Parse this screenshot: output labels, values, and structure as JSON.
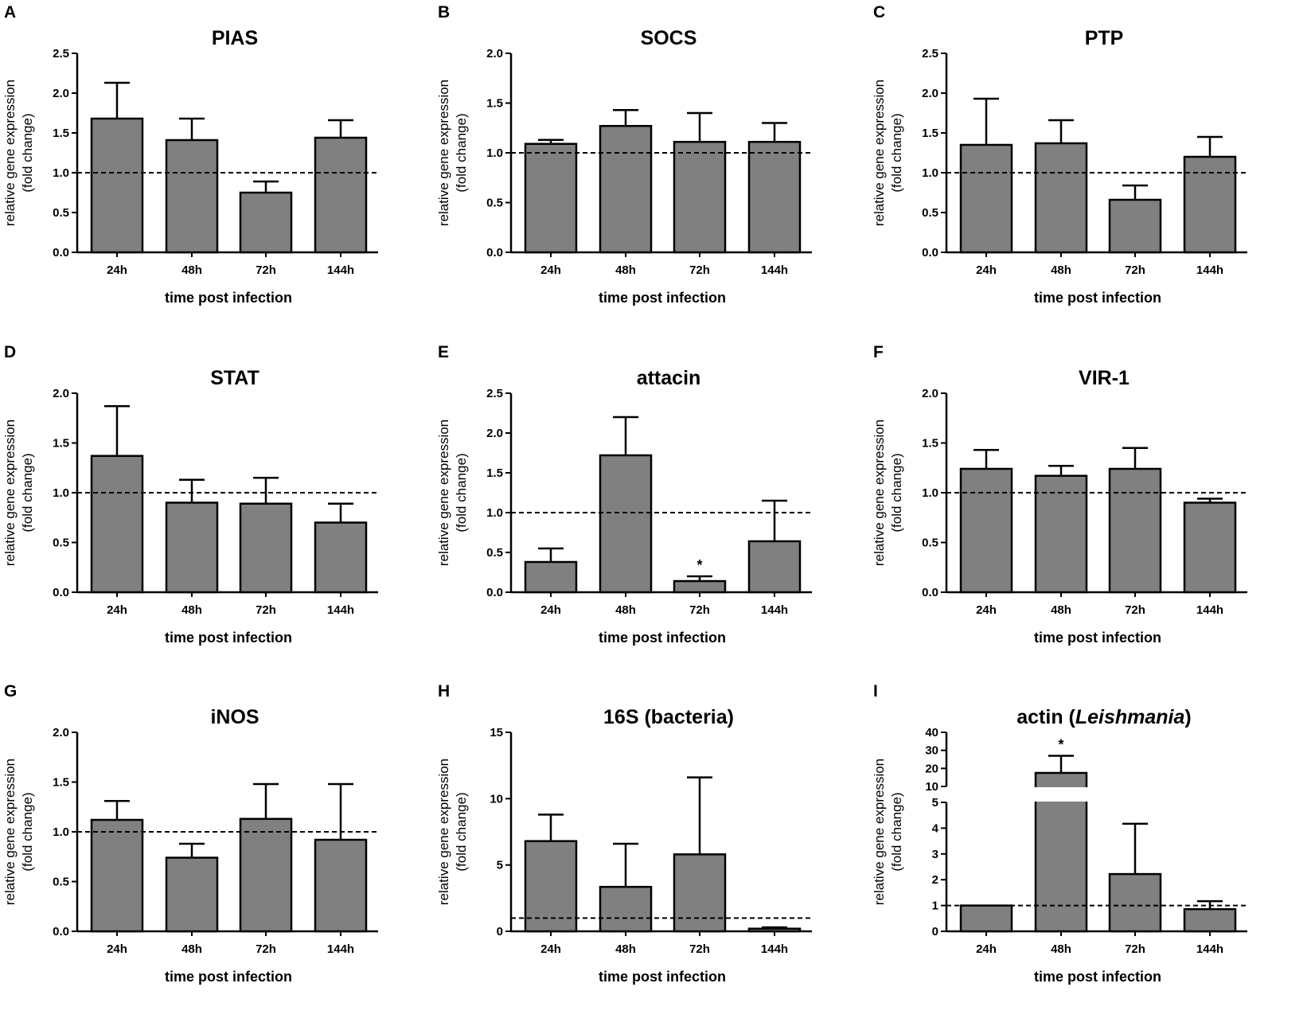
{
  "chart_data": [
    {
      "type": "bar",
      "panel": "A",
      "title": "PIAS",
      "xlabel": "time post infection",
      "ylabel": [
        "relative gene expression",
        "(fold change)"
      ],
      "categories": [
        "24h",
        "48h",
        "72h",
        "144h"
      ],
      "values": [
        1.68,
        1.41,
        0.75,
        1.44
      ],
      "error_upper": [
        2.13,
        1.68,
        0.89,
        1.66
      ],
      "ylim": [
        0,
        2.5
      ],
      "yticks": [
        "0.0",
        "0.5",
        "1.0",
        "1.5",
        "2.0",
        "2.5"
      ],
      "reference_line": 1.0,
      "significance": [
        "",
        "",
        "",
        ""
      ]
    },
    {
      "type": "bar",
      "panel": "B",
      "title": "SOCS",
      "xlabel": "time post infection",
      "ylabel": [
        "relative gene expression",
        "(fold change)"
      ],
      "categories": [
        "24h",
        "48h",
        "72h",
        "144h"
      ],
      "values": [
        1.09,
        1.27,
        1.11,
        1.11
      ],
      "error_upper": [
        1.13,
        1.43,
        1.4,
        1.3
      ],
      "ylim": [
        0,
        2.0
      ],
      "yticks": [
        "0.0",
        "0.5",
        "1.0",
        "1.5",
        "2.0"
      ],
      "reference_line": 1.0,
      "significance": [
        "",
        "",
        "",
        ""
      ]
    },
    {
      "type": "bar",
      "panel": "C",
      "title": "PTP",
      "xlabel": "time post infection",
      "ylabel": [
        "relative gene expression",
        "(fold change)"
      ],
      "categories": [
        "24h",
        "48h",
        "72h",
        "144h"
      ],
      "values": [
        1.35,
        1.37,
        0.66,
        1.2
      ],
      "error_upper": [
        1.93,
        1.66,
        0.84,
        1.45
      ],
      "ylim": [
        0,
        2.5
      ],
      "yticks": [
        "0.0",
        "0.5",
        "1.0",
        "1.5",
        "2.0",
        "2.5"
      ],
      "reference_line": 1.0,
      "significance": [
        "",
        "",
        "",
        ""
      ]
    },
    {
      "type": "bar",
      "panel": "D",
      "title": "STAT",
      "xlabel": "time post infection",
      "ylabel": [
        "relative gene expression",
        "(fold change)"
      ],
      "categories": [
        "24h",
        "48h",
        "72h",
        "144h"
      ],
      "values": [
        1.37,
        0.9,
        0.89,
        0.7
      ],
      "error_upper": [
        1.87,
        1.13,
        1.15,
        0.89
      ],
      "ylim": [
        0,
        2.0
      ],
      "yticks": [
        "0.0",
        "0.5",
        "1.0",
        "1.5",
        "2.0"
      ],
      "reference_line": 1.0,
      "significance": [
        "",
        "",
        "",
        ""
      ]
    },
    {
      "type": "bar",
      "panel": "E",
      "title": "attacin",
      "xlabel": "time post infection",
      "ylabel": [
        "relative gene expression",
        "(fold change)"
      ],
      "categories": [
        "24h",
        "48h",
        "72h",
        "144h"
      ],
      "values": [
        0.38,
        1.72,
        0.14,
        0.64
      ],
      "error_upper": [
        0.55,
        2.2,
        0.2,
        1.15
      ],
      "ylim": [
        0,
        2.5
      ],
      "yticks": [
        "0.0",
        "0.5",
        "1.0",
        "1.5",
        "2.0",
        "2.5"
      ],
      "reference_line": 1.0,
      "significance": [
        "",
        "",
        "*",
        ""
      ]
    },
    {
      "type": "bar",
      "panel": "F",
      "title": "VIR-1",
      "xlabel": "time post infection",
      "ylabel": [
        "relative gene expression",
        "(fold change)"
      ],
      "categories": [
        "24h",
        "48h",
        "72h",
        "144h"
      ],
      "values": [
        1.24,
        1.17,
        1.24,
        0.9
      ],
      "error_upper": [
        1.43,
        1.27,
        1.45,
        0.94
      ],
      "ylim": [
        0,
        2.0
      ],
      "yticks": [
        "0.0",
        "0.5",
        "1.0",
        "1.5",
        "2.0"
      ],
      "reference_line": 1.0,
      "significance": [
        "",
        "",
        "",
        ""
      ]
    },
    {
      "type": "bar",
      "panel": "G",
      "title": "iNOS",
      "xlabel": "time post infection",
      "ylabel": [
        "relative gene expression",
        "(fold change)"
      ],
      "categories": [
        "24h",
        "48h",
        "72h",
        "144h"
      ],
      "values": [
        1.12,
        0.74,
        1.13,
        0.92
      ],
      "error_upper": [
        1.31,
        0.88,
        1.48,
        1.48
      ],
      "ylim": [
        0,
        2.0
      ],
      "yticks": [
        "0.0",
        "0.5",
        "1.0",
        "1.5",
        "2.0"
      ],
      "reference_line": 1.0,
      "significance": [
        "",
        "",
        "",
        ""
      ]
    },
    {
      "type": "bar",
      "panel": "H",
      "title": "16S (bacteria)",
      "xlabel": "time post infection",
      "ylabel": [
        "relative gene expression",
        "(fold change)"
      ],
      "categories": [
        "24h",
        "48h",
        "72h",
        "144h"
      ],
      "values": [
        6.8,
        3.35,
        5.8,
        0.2
      ],
      "error_upper": [
        8.8,
        6.6,
        11.6,
        0.3
      ],
      "ylim": [
        0,
        15
      ],
      "yticks": [
        "0",
        "5",
        "10",
        "15"
      ],
      "reference_line": 1.0,
      "significance": [
        "",
        "",
        "",
        ""
      ]
    },
    {
      "type": "bar",
      "panel": "I",
      "title": "actin (",
      "title_italic": "Leishmania",
      "title_end": ")",
      "xlabel": "time post infection",
      "ylabel": [
        "relative gene expression",
        "(fold change)"
      ],
      "categories": [
        "24h",
        "48h",
        "72h",
        "144h"
      ],
      "values": [
        1.0,
        17.5,
        2.22,
        0.86
      ],
      "error_upper": [
        1.0,
        27,
        4.17,
        1.17
      ],
      "ylim": [
        0,
        40
      ],
      "axis_break": [
        5,
        10
      ],
      "yticks": [
        "0",
        "1",
        "2",
        "3",
        "4",
        "5"
      ],
      "yticks_upper": [
        "10",
        "20",
        "30",
        "40"
      ],
      "reference_line": 1.0,
      "significance": [
        "",
        "*",
        "",
        ""
      ]
    }
  ],
  "colors": {
    "bar": "#808080",
    "stroke": "#000000"
  }
}
